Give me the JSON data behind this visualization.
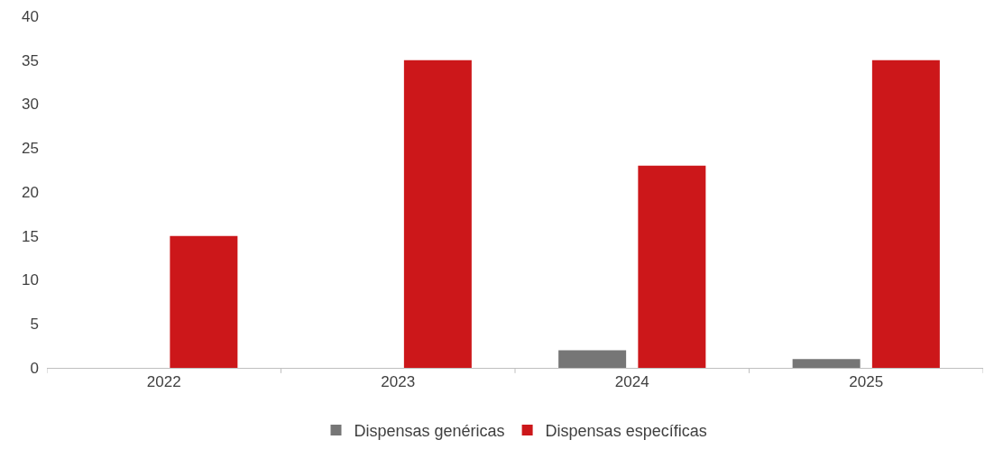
{
  "chart_data": {
    "type": "bar",
    "categories": [
      "2022",
      "2023",
      "2024",
      "2025"
    ],
    "series": [
      {
        "name": "Dispensas genéricas",
        "color": "#767676",
        "values": [
          0,
          0,
          2,
          1
        ]
      },
      {
        "name": "Dispensas específicas",
        "color": "#cc171a",
        "values": [
          15,
          35,
          23,
          35
        ]
      }
    ],
    "ylim": [
      0,
      40
    ],
    "yticks": [
      0,
      5,
      10,
      15,
      20,
      25,
      30,
      35,
      40
    ],
    "legend": "bottom"
  }
}
